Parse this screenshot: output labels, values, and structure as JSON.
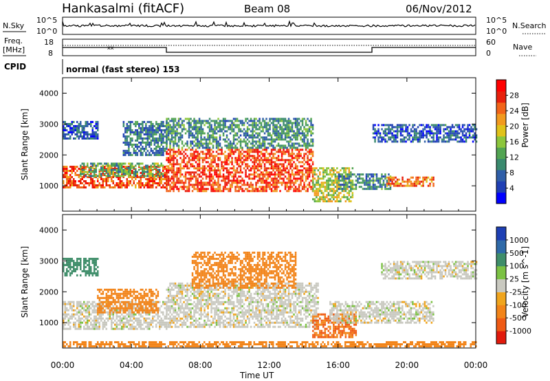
{
  "header": {
    "station": "Hankasalmi (fitACF)",
    "beam": "Beam 08",
    "date": "06/Nov/2012"
  },
  "top_panels": {
    "nsky_label": "N.Sky",
    "nsky_scale_top": "10^5",
    "nsky_scale_bottom": "10^0",
    "nsearch_label": "N.Search",
    "nsearch_scale_top": "10^5",
    "nsearch_scale_bottom": "10^0",
    "freq_label": "Freq.",
    "freq_unit": "[MHz]",
    "freq_top": "18",
    "freq_bottom": "8",
    "nave_label": "Nave",
    "nave_top": "60",
    "nave_bottom": "0",
    "cpid_label": "CPID",
    "cpid_text": "normal (fast stereo) 153"
  },
  "axes": {
    "xlabel": "Time UT",
    "x_ticks": [
      "00:00",
      "04:00",
      "08:00",
      "12:00",
      "16:00",
      "20:00",
      "00:00"
    ],
    "ylabel": "Slant Range [km]",
    "y_ticks": [
      "1000",
      "2000",
      "3000",
      "4000"
    ]
  },
  "colorbars": {
    "power": {
      "label": "Power [dB]",
      "ticks": [
        "4",
        "8",
        "12",
        "16",
        "20",
        "24",
        "28"
      ],
      "colors": [
        "#0000ff",
        "#1f3fb4",
        "#2f5ea8",
        "#3a8a6e",
        "#52a452",
        "#8cc63c",
        "#e0c21a",
        "#f29a1f",
        "#f26419",
        "#e8200c",
        "#ff0000"
      ]
    },
    "velocity": {
      "label": "Velocity [m s^-1]",
      "ticks": [
        "1000",
        "500",
        "100",
        "25",
        "-25",
        "-100",
        "-500",
        "-1000"
      ],
      "colors": [
        "#1d3fb4",
        "#2f6aa8",
        "#3f8e6a",
        "#7cc244",
        "#c9c9c0",
        "#f0a51e",
        "#f28419",
        "#ef5a14",
        "#e11a0c"
      ]
    }
  },
  "chart_data": [
    {
      "type": "heatmap",
      "panel": "power",
      "x_range_hours": [
        0,
        24
      ],
      "ylim": [
        180,
        4500
      ],
      "ylabel": "Slant Range [km]",
      "xlabel": "",
      "colorbar_label": "Power [dB]",
      "clim": [
        0,
        30
      ],
      "regions": [
        {
          "t": [
            0.0,
            6.0
          ],
          "range": [
            950,
            1650
          ],
          "value": 24
        },
        {
          "t": [
            1.0,
            5.8
          ],
          "range": [
            1300,
            1750
          ],
          "value": 12
        },
        {
          "t": [
            0.0,
            2.0
          ],
          "range": [
            2500,
            3100
          ],
          "value": 6
        },
        {
          "t": [
            3.5,
            6.0
          ],
          "range": [
            2000,
            3100
          ],
          "value": 8
        },
        {
          "t": [
            6.0,
            14.5
          ],
          "range": [
            850,
            2200
          ],
          "value": 25
        },
        {
          "t": [
            6.0,
            14.5
          ],
          "range": [
            2200,
            3200
          ],
          "value": 10
        },
        {
          "t": [
            14.5,
            16.8
          ],
          "range": [
            500,
            1600
          ],
          "value": 16
        },
        {
          "t": [
            16.0,
            19.0
          ],
          "range": [
            900,
            1400
          ],
          "value": 9
        },
        {
          "t": [
            18.8,
            21.5
          ],
          "range": [
            1000,
            1300
          ],
          "value": 22
        },
        {
          "t": [
            18.0,
            24.0
          ],
          "range": [
            2450,
            3000
          ],
          "value": 6
        }
      ]
    },
    {
      "type": "heatmap",
      "panel": "velocity",
      "x_range_hours": [
        0,
        24
      ],
      "ylim": [
        180,
        4500
      ],
      "ylabel": "Slant Range [km]",
      "xlabel": "Time UT",
      "colorbar_label": "Velocity [m s^-1]",
      "clim": [
        -1000,
        1000
      ],
      "regions": [
        {
          "t": [
            0.0,
            6.0
          ],
          "range": [
            800,
            1700
          ],
          "value": 0
        },
        {
          "t": [
            2.0,
            5.5
          ],
          "range": [
            1300,
            2100
          ],
          "value": -150
        },
        {
          "t": [
            0.0,
            2.0
          ],
          "range": [
            2500,
            3100
          ],
          "value": 200
        },
        {
          "t": [
            6.0,
            14.8
          ],
          "range": [
            850,
            2300
          ],
          "value": 0
        },
        {
          "t": [
            7.5,
            13.5
          ],
          "range": [
            2100,
            3300
          ],
          "value": -200
        },
        {
          "t": [
            14.5,
            17.0
          ],
          "range": [
            500,
            1300
          ],
          "value": -300
        },
        {
          "t": [
            15.5,
            21.5
          ],
          "range": [
            1000,
            1700
          ],
          "value": 0
        },
        {
          "t": [
            18.5,
            24.0
          ],
          "range": [
            2400,
            3000
          ],
          "value": 0
        },
        {
          "t": [
            0.0,
            24.0
          ],
          "range": [
            200,
            400
          ],
          "value": -100
        }
      ]
    }
  ]
}
